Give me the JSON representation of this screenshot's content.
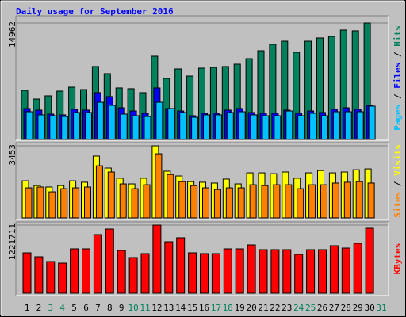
{
  "chart_data": {
    "type": "bar",
    "title": "Daily usage for September 2016",
    "categories": [
      "1",
      "2",
      "3",
      "4",
      "5",
      "6",
      "7",
      "8",
      "9",
      "10",
      "11",
      "12",
      "13",
      "14",
      "15",
      "16",
      "17",
      "18",
      "19",
      "20",
      "21",
      "22",
      "23",
      "24",
      "25",
      "26",
      "27",
      "28",
      "29",
      "30",
      "31"
    ],
    "category_colors": [
      "#000000",
      "#000000",
      "#00805c",
      "#00805c",
      "#000000",
      "#000000",
      "#000000",
      "#000000",
      "#000000",
      "#00805c",
      "#00805c",
      "#000000",
      "#000000",
      "#000000",
      "#000000",
      "#000000",
      "#00805c",
      "#00805c",
      "#000000",
      "#000000",
      "#000000",
      "#000000",
      "#000000",
      "#00805c",
      "#00805c",
      "#000000",
      "#000000",
      "#000000",
      "#000000",
      "#000000",
      "#00805c"
    ],
    "legend_separator": " / ",
    "panels": [
      {
        "ylim": [
          0,
          14962
        ],
        "yticks": [
          14962
        ],
        "series": [
          {
            "name": "Hits",
            "color": "#00805c",
            "values": [
              6310,
              5190,
              5600,
              6210,
              6720,
              6410,
              9370,
              8450,
              6620,
              6520,
              6010,
              10690,
              7840,
              9060,
              8140,
              9160,
              9260,
              9370,
              9670,
              10380,
              11400,
              12220,
              12620,
              11200,
              12620,
              13030,
              13230,
              14050,
              13950,
              14962,
              null
            ]
          },
          {
            "name": "Files",
            "color": "#0000ff",
            "values": [
              3970,
              3770,
              3260,
              3160,
              3870,
              3770,
              6010,
              5500,
              4070,
              3660,
              3360,
              6620,
              3970,
              3660,
              3050,
              3360,
              3360,
              3770,
              3970,
              3460,
              3360,
              3360,
              3770,
              3360,
              3660,
              3460,
              3870,
              4070,
              3870,
              4380,
              null
            ]
          },
          {
            "name": "Pages",
            "color": "#00c0ff",
            "values": [
              3560,
              3160,
              3050,
              2950,
              3460,
              3460,
              4780,
              4380,
              3260,
              3050,
              2950,
              4780,
              3970,
              3460,
              2850,
              3160,
              3160,
              3460,
              3560,
              3160,
              3050,
              3050,
              3660,
              3050,
              3360,
              3050,
              3560,
              3560,
              3560,
              4280,
              null
            ]
          }
        ]
      },
      {
        "ylim": [
          0,
          3453
        ],
        "yticks": [
          3453
        ],
        "series": [
          {
            "name": "Visits",
            "color": "#ffff00",
            "values": [
              1780,
              1550,
              1480,
              1550,
              1780,
              1710,
              2960,
              2390,
              1900,
              1630,
              1900,
              3453,
              2240,
              2010,
              1740,
              1710,
              1670,
              1860,
              1630,
              2160,
              2160,
              2120,
              2200,
              1900,
              2160,
              2270,
              2160,
              2200,
              2310,
              2350,
              null
            ]
          },
          {
            "name": "Sites",
            "color": "#ff8000",
            "values": [
              1440,
              1480,
              1250,
              1400,
              1440,
              1480,
              2500,
              2200,
              1630,
              1400,
              1590,
              3070,
              2080,
              1740,
              1550,
              1440,
              1360,
              1440,
              1440,
              1590,
              1550,
              1590,
              1590,
              1400,
              1590,
              1590,
              1670,
              1710,
              1740,
              1670,
              null
            ]
          }
        ]
      },
      {
        "ylim": [
          0,
          1221711
        ],
        "yticks": [
          1221711
        ],
        "series": [
          {
            "name": "KBytes",
            "color": "#ff0000",
            "values": [
              724500,
              653500,
              568200,
              539800,
              795500,
              795500,
              1051200,
              1150700,
              767100,
              639300,
              710300,
              1221711,
              923400,
              994400,
              724500,
              710300,
              710300,
              795500,
              795500,
              866600,
              781300,
              781300,
              781300,
              696100,
              781300,
              781300,
              852400,
              809700,
              895000,
              1164900,
              null
            ]
          }
        ]
      }
    ]
  }
}
